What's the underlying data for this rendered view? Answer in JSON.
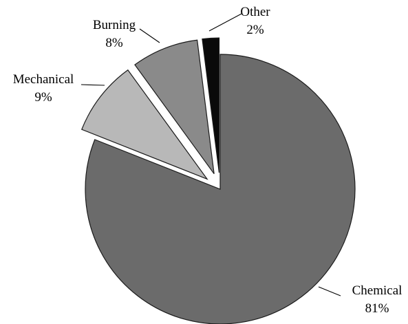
{
  "chart_data": {
    "type": "pie",
    "title": "",
    "slices": [
      {
        "label": "Chemical",
        "value": 81,
        "value_label": "81%",
        "color": "#6b6b6b",
        "exploded": false
      },
      {
        "label": "Mechanical",
        "value": 9,
        "value_label": "9%",
        "color": "#b8b8b8",
        "exploded": true
      },
      {
        "label": "Burning",
        "value": 8,
        "value_label": "8%",
        "color": "#8a8a8a",
        "exploded": true
      },
      {
        "label": "Other",
        "value": 2,
        "value_label": "2%",
        "color": "#0a0a0a",
        "exploded": true
      }
    ],
    "legend": "none",
    "start_angle": "12 o'clock",
    "direction": "clockwise"
  }
}
